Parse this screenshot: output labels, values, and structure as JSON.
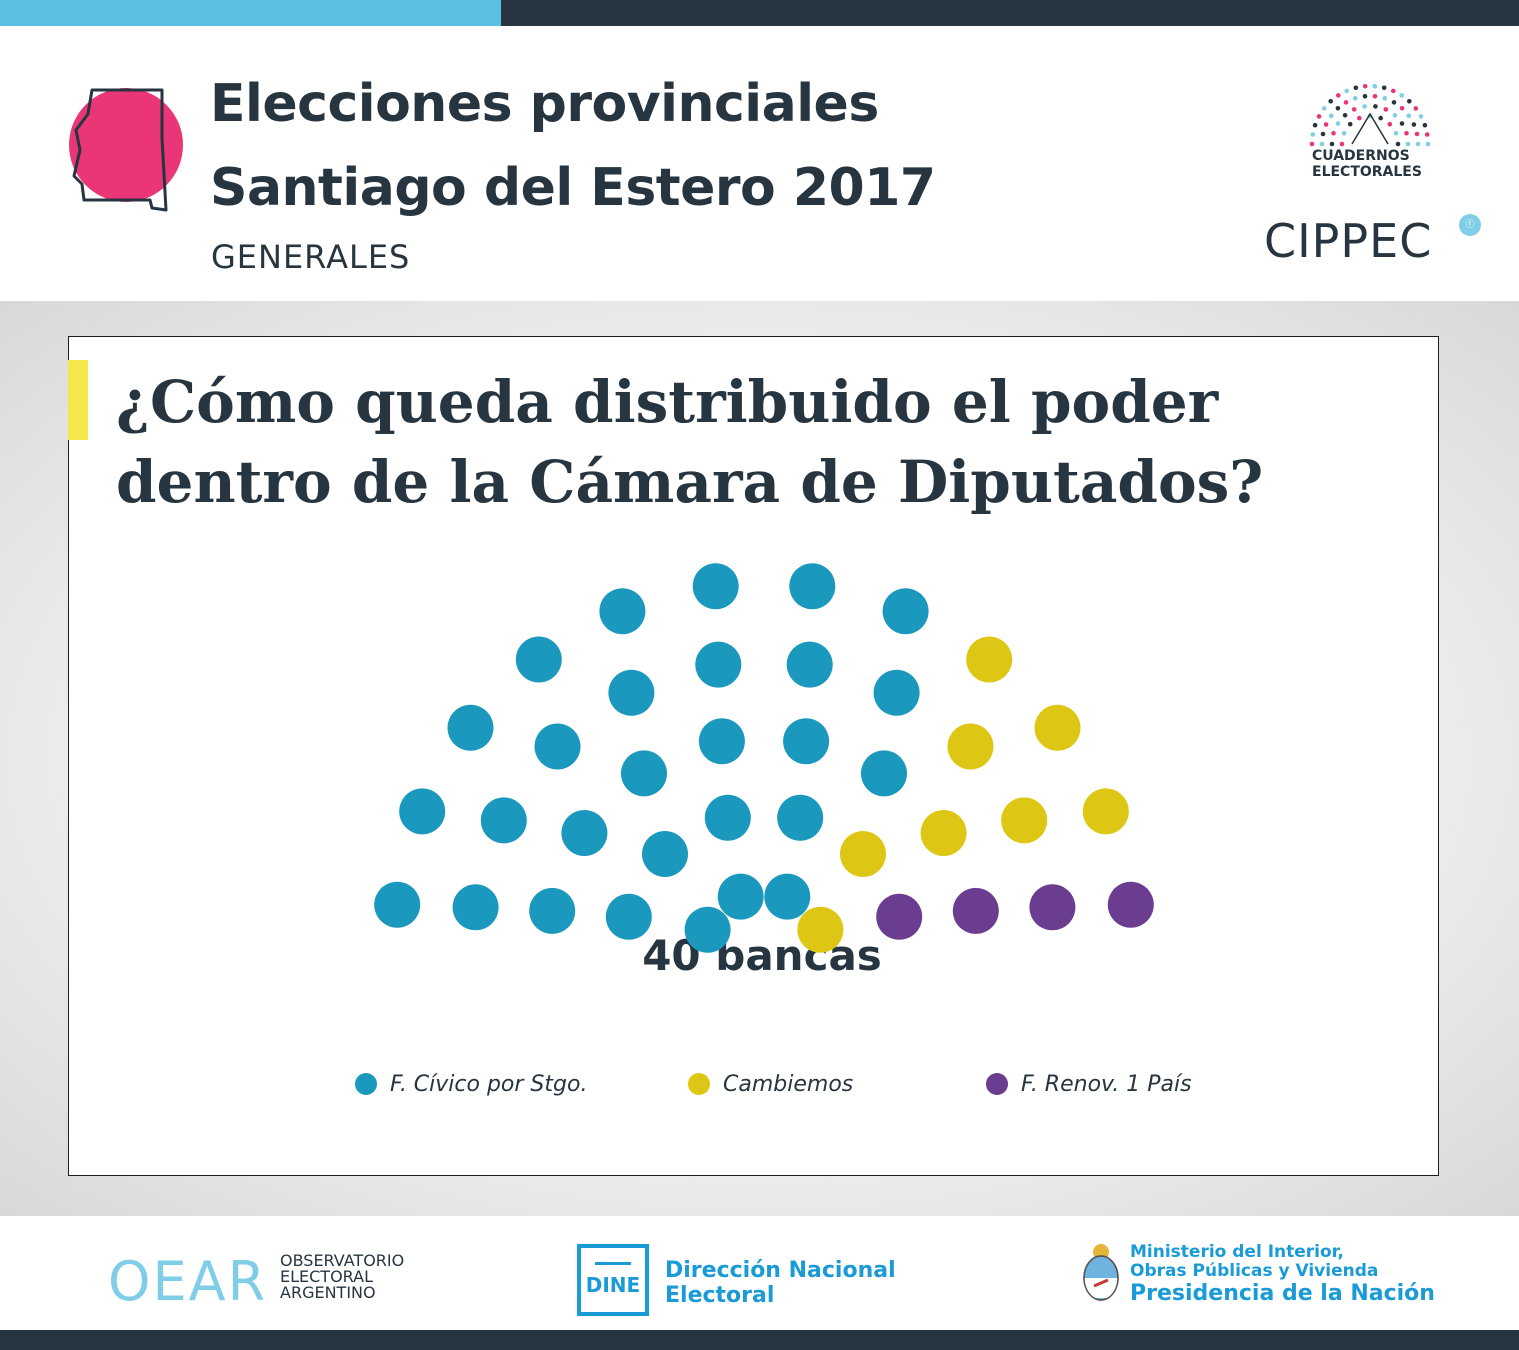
{
  "header": {
    "title_line1": "Elecciones provinciales",
    "title_line2": "Santiago del Estero 2017",
    "subtitle": "GENERALES",
    "logo_cuadernos_line1": "CUADERNOS",
    "logo_cuadernos_line2": "ELECTORALES",
    "logo_cippec": "CIPPEC"
  },
  "question": "¿Cómo queda distribuido el poder dentro de la Cámara de Diputados?",
  "chart_data": {
    "type": "parliament",
    "total_label": "40 bancas",
    "total_seats": 40,
    "series": [
      {
        "name": "F. Cívico por Stgo.",
        "seats": 28,
        "color": "#1a98bd"
      },
      {
        "name": "Cambiemos",
        "seats": 8,
        "color": "#ddc714"
      },
      {
        "name": "F. Renov. 1 País",
        "seats": 4,
        "color": "#6b3d91"
      }
    ],
    "legend_position": "bottom"
  },
  "footer": {
    "oear_logo": "OEAR",
    "oear_line1": "OBSERVATORIO",
    "oear_line2": "ELECTORAL",
    "oear_line3": "ARGENTINO",
    "dine_logo": "DINE",
    "dine_line1": "Dirección Nacional",
    "dine_line2": "Electoral",
    "min_line1": "Ministerio del Interior,",
    "min_line2": "Obras Públicas y Vivienda",
    "min_line3": "Presidencia de la Nación"
  }
}
